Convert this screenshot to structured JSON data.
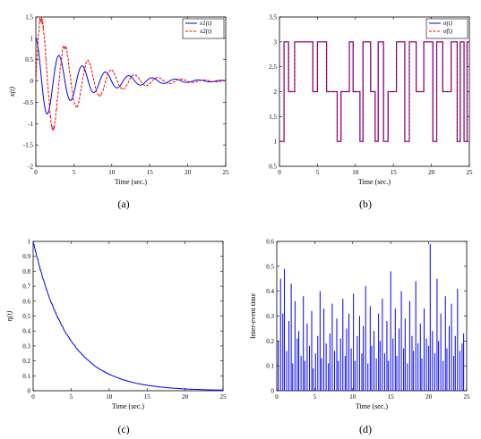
{
  "panels": [
    {
      "id": "a",
      "caption": "(a)",
      "chart_data": {
        "type": "line",
        "xlabel": "Time (sec.)",
        "ylabel": "x(t)",
        "xlim": [
          0,
          25
        ],
        "ylim": [
          -2,
          1.5
        ],
        "xticks": [
          "0",
          "5",
          "10",
          "15",
          "20",
          "25"
        ],
        "yticks": [
          "-2",
          "-1.5",
          "-1",
          "-0.5",
          "0",
          "0.5",
          "1",
          "1.5"
        ],
        "legend_position": "top-right",
        "series": [
          {
            "name": "x1(t)",
            "color": "#0000ff",
            "style": "solid",
            "model": {
              "amplitude": 1.0,
              "decay": 0.17,
              "omega": 2.05,
              "phase": 0.0
            }
          },
          {
            "name": "x2(t)",
            "color": "#ff0000",
            "style": "dashed",
            "model": {
              "amplitude": 1.72,
              "decay": 0.19,
              "omega": 2.05,
              "phase": -1.57
            }
          }
        ]
      }
    },
    {
      "id": "b",
      "caption": "(b)",
      "chart_data": {
        "type": "line",
        "xlabel": "Time (sec.)",
        "ylabel": "",
        "xlim": [
          0,
          25
        ],
        "ylim": [
          0.5,
          3.5
        ],
        "xticks": [
          "0",
          "5",
          "10",
          "15",
          "20",
          "25"
        ],
        "yticks": [
          "0.5",
          "1",
          "1.5",
          "2",
          "2.5",
          "3",
          "3.5"
        ],
        "legend_position": "top-right",
        "series": [
          {
            "name": "σ(t)",
            "color": "#0000ff",
            "style": "solid"
          },
          {
            "name": "σ̂(t)",
            "color": "#ff0000",
            "style": "dashed"
          }
        ],
        "steps": [
          [
            0,
            1
          ],
          [
            0.6,
            3
          ],
          [
            1.2,
            2
          ],
          [
            2,
            3
          ],
          [
            4.4,
            2
          ],
          [
            5,
            3
          ],
          [
            6.2,
            2
          ],
          [
            7.6,
            1
          ],
          [
            8.1,
            2
          ],
          [
            9.2,
            3
          ],
          [
            9.7,
            2
          ],
          [
            10.6,
            1
          ],
          [
            11,
            3
          ],
          [
            12,
            2
          ],
          [
            12.6,
            1
          ],
          [
            13,
            3
          ],
          [
            13.7,
            1
          ],
          [
            14.3,
            2
          ],
          [
            15.4,
            3
          ],
          [
            16.5,
            1
          ],
          [
            17.1,
            3
          ],
          [
            18,
            2
          ],
          [
            19,
            3
          ],
          [
            20.2,
            1
          ],
          [
            20.7,
            3
          ],
          [
            21.5,
            2
          ],
          [
            22.6,
            3
          ],
          [
            23.4,
            1
          ],
          [
            23.8,
            3
          ],
          [
            24.3,
            1
          ],
          [
            24.7,
            3
          ],
          [
            25,
            3
          ]
        ]
      }
    },
    {
      "id": "c",
      "caption": "(c)",
      "chart_data": {
        "type": "line",
        "xlabel": "Time (sec.)",
        "ylabel": "η(t)",
        "xlim": [
          0,
          25
        ],
        "ylim": [
          0,
          1
        ],
        "xticks": [
          "0",
          "5",
          "10",
          "15",
          "20",
          "25"
        ],
        "yticks": [
          "0",
          "0.1",
          "0.2",
          "0.3",
          "0.4",
          "0.5",
          "0.6",
          "0.7",
          "0.8",
          "0.9",
          "1"
        ],
        "series": [
          {
            "name": "",
            "color": "#0000ff",
            "style": "solid",
            "model": {
              "start": 1.0,
              "decay": 0.22
            }
          }
        ]
      }
    },
    {
      "id": "d",
      "caption": "(d)",
      "chart_data": {
        "type": "bar",
        "xlabel": "Time (sec.)",
        "ylabel": "Inter-event time",
        "xlim": [
          0,
          25
        ],
        "ylim": [
          0,
          0.6
        ],
        "xticks": [
          "0",
          "5",
          "10",
          "15",
          "20",
          "25"
        ],
        "yticks": [
          "0",
          "0.1",
          "0.2",
          "0.3",
          "0.4",
          "0.5",
          "0.6"
        ],
        "series": [
          {
            "name": "",
            "color": "#0000ff"
          }
        ],
        "x": [
          0.2,
          0.5,
          0.8,
          1.0,
          1.3,
          1.6,
          1.9,
          2.1,
          2.4,
          2.7,
          2.9,
          3.2,
          3.5,
          3.7,
          4.0,
          4.3,
          4.6,
          4.8,
          5.1,
          5.4,
          5.7,
          5.9,
          6.2,
          6.5,
          6.8,
          7.0,
          7.3,
          7.6,
          7.9,
          8.1,
          8.4,
          8.7,
          9.0,
          9.2,
          9.5,
          9.8,
          10.1,
          10.3,
          10.6,
          10.9,
          11.2,
          11.4,
          11.7,
          12.0,
          12.3,
          12.5,
          12.8,
          13.1,
          13.4,
          13.6,
          13.9,
          14.2,
          14.5,
          14.7,
          15.0,
          15.3,
          15.6,
          15.8,
          16.1,
          16.4,
          16.7,
          16.9,
          17.2,
          17.5,
          17.8,
          18.0,
          18.3,
          18.6,
          18.9,
          19.1,
          19.4,
          19.7,
          20.0,
          20.2,
          20.5,
          20.8,
          21.1,
          21.3,
          21.6,
          21.9,
          22.2,
          22.4,
          22.7,
          23.0,
          23.3,
          23.5,
          23.8,
          24.1,
          24.4,
          24.6
        ],
        "values": [
          0.2,
          0.45,
          0.31,
          0.49,
          0.16,
          0.28,
          0.43,
          0.11,
          0.36,
          0.21,
          0.24,
          0.14,
          0.38,
          0.12,
          0.27,
          0.18,
          0.32,
          0.09,
          0.15,
          0.22,
          0.4,
          0.13,
          0.33,
          0.19,
          0.11,
          0.23,
          0.35,
          0.16,
          0.29,
          0.12,
          0.21,
          0.37,
          0.14,
          0.25,
          0.31,
          0.17,
          0.39,
          0.12,
          0.22,
          0.3,
          0.15,
          0.26,
          0.42,
          0.11,
          0.34,
          0.18,
          0.24,
          0.13,
          0.31,
          0.2,
          0.37,
          0.15,
          0.28,
          0.12,
          0.48,
          0.21,
          0.33,
          0.14,
          0.25,
          0.4,
          0.17,
          0.29,
          0.11,
          0.36,
          0.22,
          0.16,
          0.44,
          0.19,
          0.27,
          0.13,
          0.33,
          0.21,
          0.18,
          0.59,
          0.24,
          0.15,
          0.45,
          0.2,
          0.31,
          0.12,
          0.38,
          0.17,
          0.26,
          0.35,
          0.14,
          0.22,
          0.41,
          0.16,
          0.19,
          0.23
        ]
      }
    }
  ]
}
